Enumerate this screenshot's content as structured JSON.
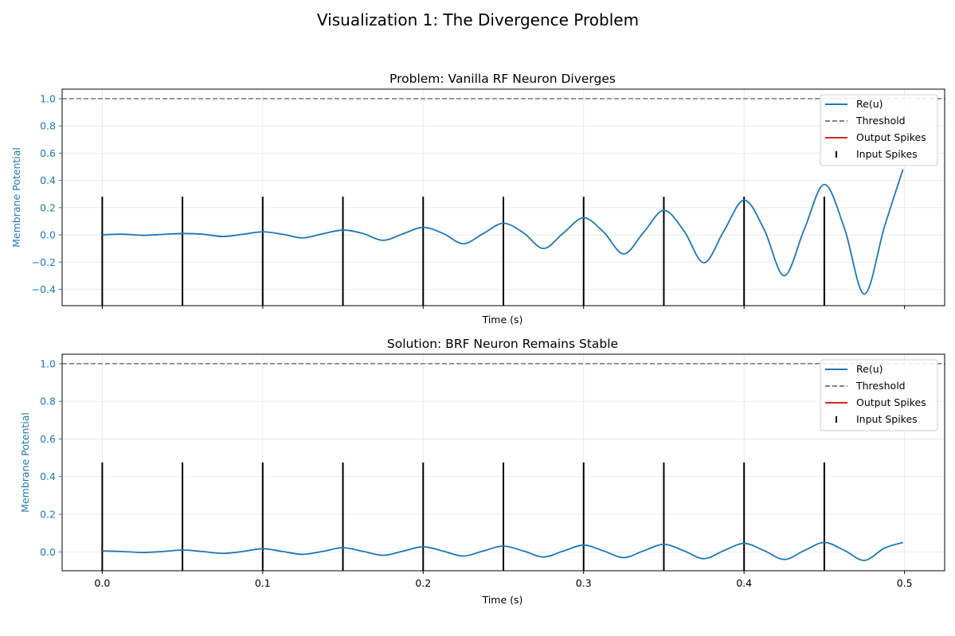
{
  "figure": {
    "title": "Visualization 1: The Divergence Problem"
  },
  "chart_data": [
    {
      "type": "line",
      "title": "Problem: Vanilla RF Neuron Diverges",
      "xlabel": "Time (s)",
      "ylabel": "Membrane Potential",
      "xlim": [
        -0.025,
        0.525
      ],
      "ylim": [
        -0.52,
        1.07
      ],
      "yticks": [
        -0.4,
        -0.2,
        0.0,
        0.2,
        0.4,
        0.6,
        0.8,
        1.0
      ],
      "ytick_labels": [
        "−0.4",
        "−0.2",
        "0.0",
        "0.2",
        "0.4",
        "0.6",
        "0.8",
        "1.0"
      ],
      "xticks": [
        0.0,
        0.1,
        0.2,
        0.3,
        0.4,
        0.5
      ],
      "xtick_labels": [
        "",
        "",
        "",
        "",
        "",
        ""
      ],
      "grid": true,
      "legend": {
        "position": "upper-right",
        "entries": [
          "Re(u)",
          "Threshold",
          "Output Spikes",
          "Input Spikes"
        ]
      },
      "threshold": 1.0,
      "input_spikes": {
        "times": [
          0.0,
          0.05,
          0.1,
          0.15,
          0.2,
          0.25,
          0.3,
          0.35,
          0.4,
          0.45
        ],
        "ymin": -0.52,
        "ymax": 0.28
      },
      "series": [
        {
          "name": "Re(u)",
          "x": [
            0.0,
            0.0125,
            0.025,
            0.0375,
            0.05,
            0.0625,
            0.075,
            0.0875,
            0.1,
            0.1125,
            0.125,
            0.1375,
            0.15,
            0.1625,
            0.175,
            0.1875,
            0.2,
            0.2125,
            0.225,
            0.2375,
            0.25,
            0.2625,
            0.275,
            0.2875,
            0.3,
            0.3125,
            0.325,
            0.3375,
            0.35,
            0.3625,
            0.375,
            0.3875,
            0.4,
            0.4125,
            0.425,
            0.4375,
            0.45,
            0.4625,
            0.475,
            0.4875,
            0.499
          ],
          "y": [
            0.0,
            0.005,
            -0.003,
            0.003,
            0.01,
            0.005,
            -0.012,
            0.004,
            0.022,
            0.004,
            -0.022,
            0.008,
            0.035,
            0.01,
            -0.04,
            0.008,
            0.055,
            0.01,
            -0.065,
            0.01,
            0.085,
            0.015,
            -0.1,
            0.015,
            0.125,
            0.02,
            -0.14,
            0.02,
            0.18,
            0.03,
            -0.205,
            0.03,
            0.255,
            0.04,
            -0.3,
            0.04,
            0.37,
            0.05,
            -0.435,
            0.06,
            0.48
          ]
        }
      ]
    },
    {
      "type": "line",
      "title": "Solution: BRF Neuron Remains Stable",
      "xlabel": "Time (s)",
      "ylabel": "Membrane Potential",
      "xlim": [
        -0.025,
        0.525
      ],
      "ylim": [
        -0.1,
        1.05
      ],
      "yticks": [
        0.0,
        0.2,
        0.4,
        0.6,
        0.8,
        1.0
      ],
      "ytick_labels": [
        "0.0",
        "0.2",
        "0.4",
        "0.6",
        "0.8",
        "1.0"
      ],
      "xticks": [
        0.0,
        0.1,
        0.2,
        0.3,
        0.4,
        0.5
      ],
      "xtick_labels": [
        "0.0",
        "0.1",
        "0.2",
        "0.3",
        "0.4",
        "0.5"
      ],
      "grid": true,
      "legend": {
        "position": "upper-right",
        "entries": [
          "Re(u)",
          "Threshold",
          "Output Spikes",
          "Input Spikes"
        ]
      },
      "threshold": 1.0,
      "input_spikes": {
        "times": [
          0.0,
          0.05,
          0.1,
          0.15,
          0.2,
          0.25,
          0.3,
          0.35,
          0.4,
          0.45
        ],
        "ymin": -0.1,
        "ymax": 0.475
      },
      "series": [
        {
          "name": "Re(u)",
          "x": [
            0.0,
            0.0125,
            0.025,
            0.0375,
            0.05,
            0.0625,
            0.075,
            0.0875,
            0.1,
            0.1125,
            0.125,
            0.1375,
            0.15,
            0.1625,
            0.175,
            0.1875,
            0.2,
            0.2125,
            0.225,
            0.2375,
            0.25,
            0.2625,
            0.275,
            0.2875,
            0.3,
            0.3125,
            0.325,
            0.3375,
            0.35,
            0.3625,
            0.375,
            0.3875,
            0.4,
            0.4125,
            0.425,
            0.4375,
            0.45,
            0.4625,
            0.475,
            0.4875,
            0.499
          ],
          "y": [
            0.005,
            0.002,
            -0.003,
            0.002,
            0.01,
            0.002,
            -0.008,
            0.002,
            0.017,
            0.002,
            -0.013,
            0.003,
            0.022,
            0.003,
            -0.018,
            0.004,
            0.027,
            0.004,
            -0.022,
            0.005,
            0.031,
            0.005,
            -0.027,
            0.005,
            0.036,
            0.005,
            -0.03,
            0.006,
            0.04,
            0.006,
            -0.036,
            0.007,
            0.045,
            0.007,
            -0.04,
            0.007,
            0.05,
            0.008,
            -0.045,
            0.02,
            0.05
          ]
        }
      ]
    }
  ]
}
